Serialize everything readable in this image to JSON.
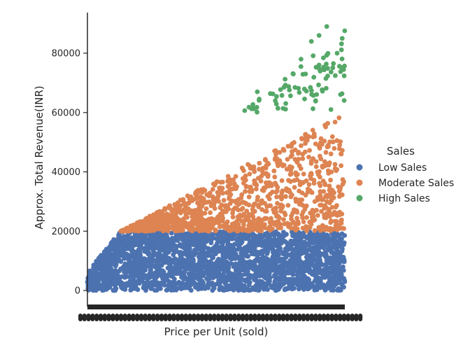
{
  "chart_data": {
    "type": "scatter",
    "title": "",
    "xlabel": "Price per Unit (sold)",
    "ylabel": "Approx. Total Revenue(INR)",
    "ylim": [
      -5000,
      93000
    ],
    "yticks": [
      0,
      20000,
      40000,
      60000,
      80000
    ],
    "xlim": [
      0,
      1
    ],
    "x_tick_labels_overlapping": true,
    "grid": false,
    "legend": {
      "title": "Sales",
      "placement": "right",
      "entries": [
        {
          "name": "Low Sales",
          "color": "#4c72b0"
        },
        {
          "name": "Moderate Sales",
          "color": "#dd8452"
        },
        {
          "name": "High Sales",
          "color": "#55a868"
        }
      ]
    },
    "series": [
      {
        "name": "Low Sales",
        "color": "#4c72b0",
        "y_range": [
          0,
          20000
        ],
        "x_range": [
          0,
          1
        ],
        "approx_points": 2600,
        "note_shape": "dense band spanning full x range"
      },
      {
        "name": "Moderate Sales",
        "color": "#dd8452",
        "y_range": [
          20000,
          60000
        ],
        "x_start": 0.13,
        "approx_points": 1100,
        "upper_bound_line": {
          "x0": 0.13,
          "y0": 20000,
          "x1": 1.0,
          "y1": 60000
        }
      },
      {
        "name": "High Sales",
        "color": "#55a868",
        "y_range": [
          60000,
          89000
        ],
        "x_start": 0.6,
        "approx_points": 90,
        "sample_points": [
          [
            0.93,
            89000
          ],
          [
            0.9,
            86000
          ],
          [
            0.99,
            85000
          ],
          [
            0.87,
            84000
          ],
          [
            0.83,
            78000
          ],
          [
            0.97,
            80000
          ],
          [
            0.8,
            73000
          ],
          [
            0.9,
            76000
          ],
          [
            0.66,
            67000
          ],
          [
            0.73,
            64000
          ]
        ]
      }
    ]
  }
}
